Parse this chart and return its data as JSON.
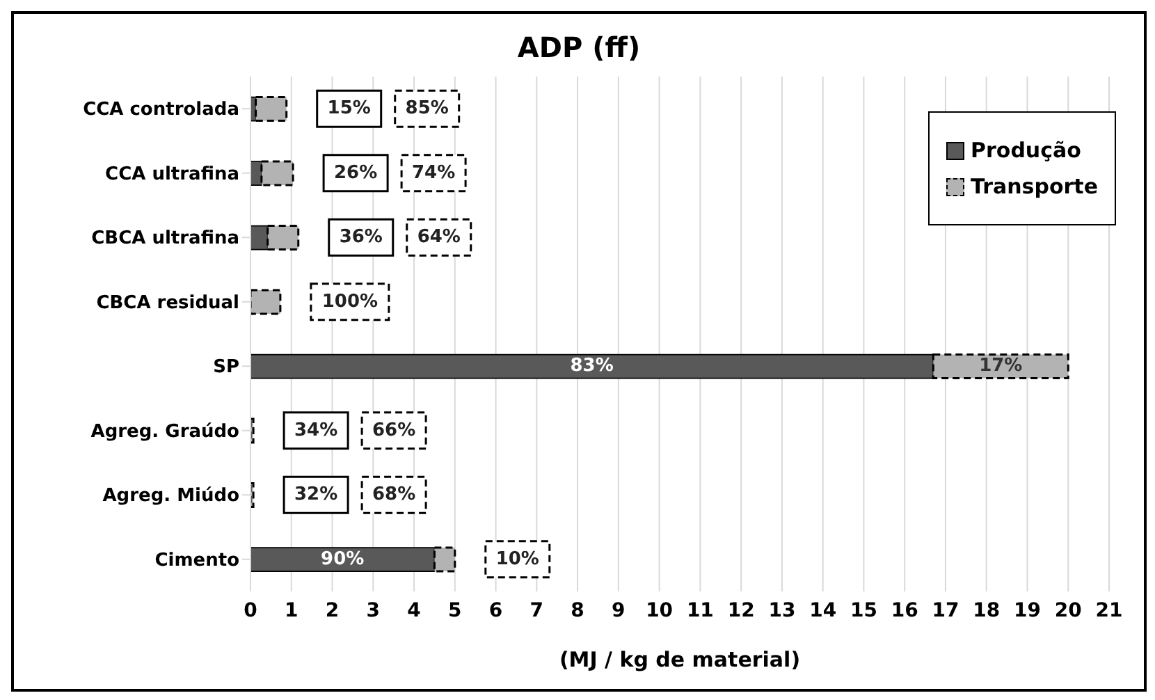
{
  "chart_data": {
    "type": "bar",
    "orientation": "horizontal",
    "stacked": true,
    "title": "ADP (ff)",
    "xlabel": "(MJ / kg de material)",
    "categories": [
      "CCA controlada",
      "CCA ultrafina",
      "CBCA ultrafina",
      "CBCA residual",
      "SP",
      "Agreg. Graúdo",
      "Agreg. Miúdo",
      "Cimento"
    ],
    "series": [
      {
        "name": "Produção",
        "color": "#595959",
        "values": [
          0.13,
          0.27,
          0.42,
          0,
          16.7,
          null,
          null,
          4.5
        ]
      },
      {
        "name": "Transporte",
        "color": "#b3b3b3",
        "values": [
          0.75,
          0.77,
          0.75,
          0.73,
          3.3,
          0.07,
          0.07,
          0.5
        ]
      }
    ],
    "annotations": [
      "15%",
      "85%",
      "26%",
      "74%",
      "36%",
      "64%",
      "100%",
      "83%",
      "17%",
      "34%",
      "66%",
      "32%",
      "68%",
      "90%",
      "10%"
    ],
    "xlim": [
      0,
      21
    ],
    "xticks": [
      0,
      1,
      2,
      3,
      4,
      5,
      6,
      7,
      8,
      9,
      10,
      11,
      12,
      13,
      14,
      15,
      16,
      17,
      18,
      19,
      20,
      21
    ],
    "grid": "x",
    "legend": "top right"
  }
}
